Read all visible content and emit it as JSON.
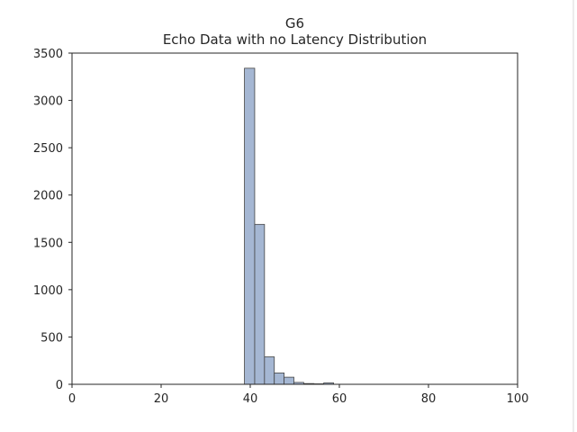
{
  "chart_data": {
    "type": "bar",
    "title": "G6",
    "subtitle": "Echo Data with no Latency Distribution",
    "xlabel": "",
    "ylabel": "",
    "xlim": [
      0,
      100
    ],
    "ylim": [
      0,
      3500
    ],
    "xticks": [
      0,
      20,
      40,
      60,
      80,
      100
    ],
    "yticks": [
      0,
      500,
      1000,
      1500,
      2000,
      2500,
      3000,
      3500
    ],
    "grid": false,
    "bins": [
      {
        "x0": 38.7,
        "x1": 41.0,
        "count": 3340
      },
      {
        "x0": 41.0,
        "x1": 43.2,
        "count": 1690
      },
      {
        "x0": 43.2,
        "x1": 45.4,
        "count": 290
      },
      {
        "x0": 45.4,
        "x1": 47.6,
        "count": 120
      },
      {
        "x0": 47.6,
        "x1": 49.8,
        "count": 75
      },
      {
        "x0": 49.8,
        "x1": 52.0,
        "count": 20
      },
      {
        "x0": 52.0,
        "x1": 54.3,
        "count": 8
      },
      {
        "x0": 54.3,
        "x1": 56.5,
        "count": 5
      },
      {
        "x0": 56.5,
        "x1": 58.7,
        "count": 15
      }
    ],
    "bar_color": "#a5b7d3"
  }
}
